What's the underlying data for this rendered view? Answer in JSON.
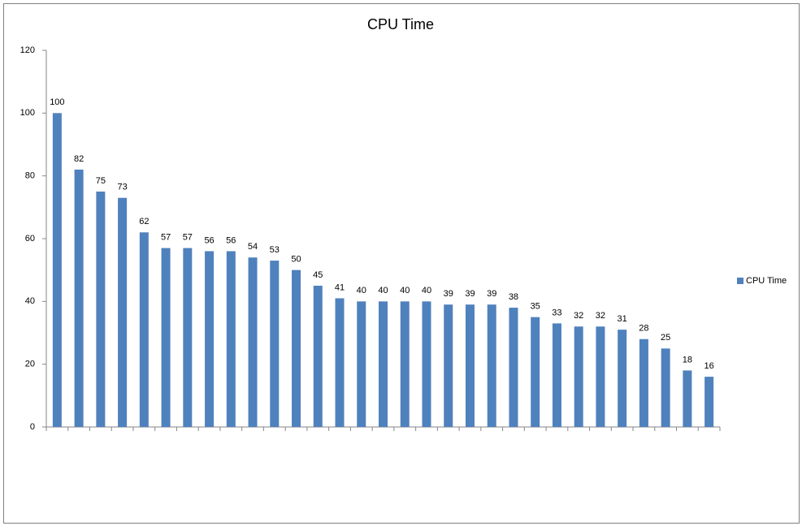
{
  "chart_data": {
    "type": "bar",
    "title": "CPU Time",
    "categories": [
      null,
      null,
      null,
      null,
      null,
      null,
      null,
      null,
      null,
      null,
      null,
      null,
      null,
      null,
      null,
      null,
      null,
      null,
      null,
      null,
      null,
      null,
      null,
      null,
      null,
      null,
      null,
      null,
      null,
      null,
      null
    ],
    "series": [
      {
        "name": "CPU Time",
        "color": "#4f81bd",
        "values": [
          100,
          82,
          75,
          73,
          62,
          57,
          57,
          56,
          56,
          54,
          53,
          50,
          45,
          41,
          40,
          40,
          40,
          40,
          39,
          39,
          39,
          38,
          35,
          33,
          32,
          32,
          31,
          28,
          25,
          18,
          16
        ]
      }
    ],
    "ylim": [
      0,
      120
    ],
    "yticks": [
      0,
      20,
      40,
      60,
      80,
      100,
      120
    ],
    "grid": false,
    "legend": "right"
  }
}
